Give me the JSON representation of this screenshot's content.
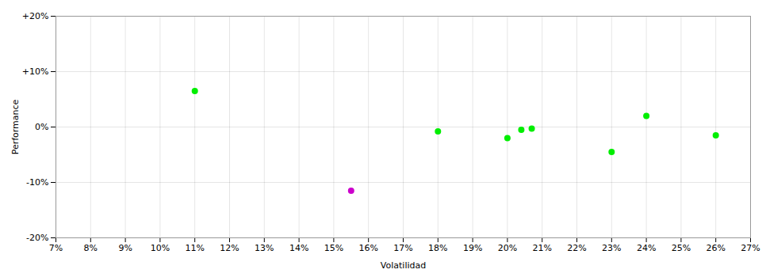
{
  "chart_data": {
    "type": "scatter",
    "xlabel": "Volatilidad",
    "ylabel": "Performance",
    "x": [
      11.0,
      15.5,
      18.0,
      20.0,
      20.4,
      20.7,
      23.0,
      24.0,
      26.0
    ],
    "values": [
      6.5,
      -11.5,
      -0.8,
      -2.0,
      -0.5,
      -0.3,
      -4.5,
      2.0,
      -1.5
    ],
    "colors": [
      "#00ee00",
      "#cc00cc",
      "#00ee00",
      "#00ee00",
      "#00ee00",
      "#00ee00",
      "#00ee00",
      "#00ee00",
      "#00ee00"
    ],
    "xlim": [
      7,
      27
    ],
    "ylim": [
      -20,
      20
    ],
    "xticks": [
      {
        "value": 7,
        "label": "7%"
      },
      {
        "value": 8,
        "label": "8%"
      },
      {
        "value": 9,
        "label": "9%"
      },
      {
        "value": 10,
        "label": "10%"
      },
      {
        "value": 11,
        "label": "11%"
      },
      {
        "value": 12,
        "label": "12%"
      },
      {
        "value": 13,
        "label": "13%"
      },
      {
        "value": 14,
        "label": "14%"
      },
      {
        "value": 15,
        "label": "15%"
      },
      {
        "value": 16,
        "label": "16%"
      },
      {
        "value": 17,
        "label": "17%"
      },
      {
        "value": 18,
        "label": "18%"
      },
      {
        "value": 19,
        "label": "19%"
      },
      {
        "value": 20,
        "label": "20%"
      },
      {
        "value": 21,
        "label": "21%"
      },
      {
        "value": 22,
        "label": "22%"
      },
      {
        "value": 23,
        "label": "23%"
      },
      {
        "value": 24,
        "label": "24%"
      },
      {
        "value": 25,
        "label": "25%"
      },
      {
        "value": 26,
        "label": "26%"
      },
      {
        "value": 27,
        "label": "27%"
      }
    ],
    "yticks": [
      {
        "value": -20,
        "label": "-20%"
      },
      {
        "value": -10,
        "label": "-10%"
      },
      {
        "value": 0,
        "label": "0%"
      },
      {
        "value": 10,
        "label": "+10%"
      },
      {
        "value": 20,
        "label": "+20%"
      }
    ],
    "grid": true
  }
}
